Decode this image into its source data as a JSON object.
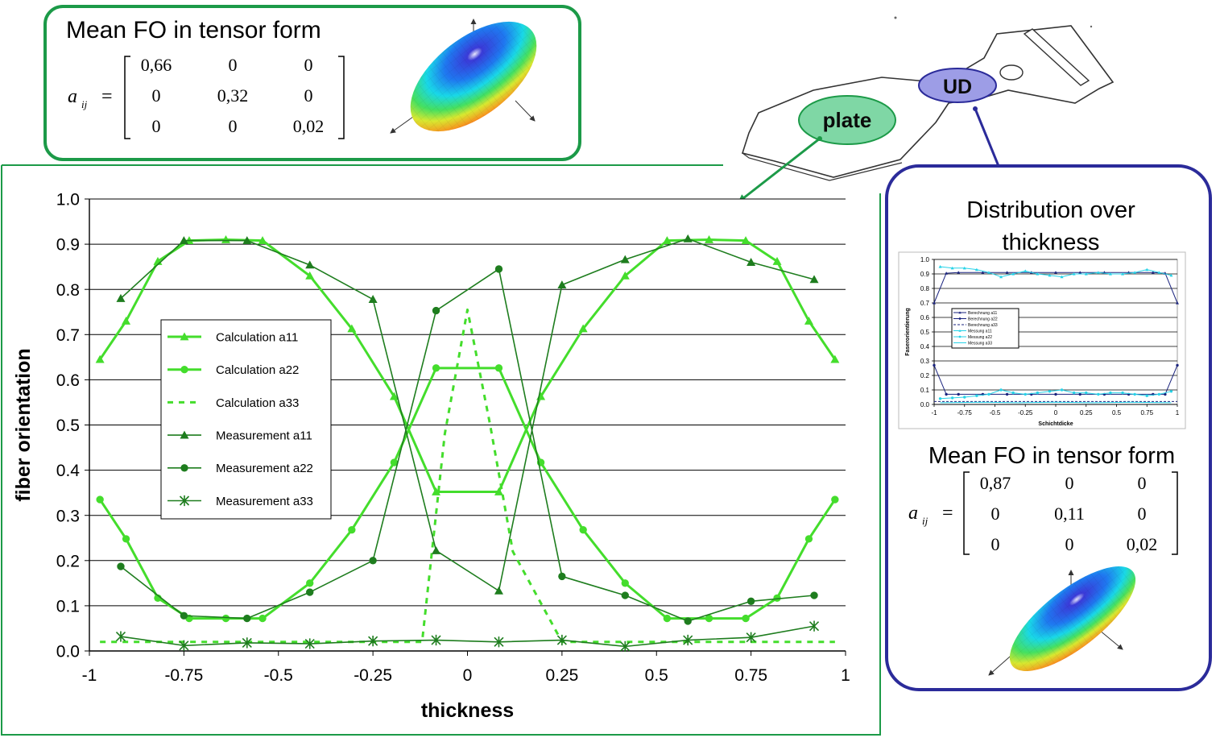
{
  "top_box": {
    "title": "Mean FO in tensor form",
    "symbol_a": "a",
    "symbol_sub": "ij",
    "equals": "=",
    "matrix": [
      [
        "0,66",
        "0",
        "0"
      ],
      [
        "0",
        "0,32",
        "0"
      ],
      [
        "0",
        "0",
        "0,02"
      ]
    ]
  },
  "part_labels": {
    "plate": "plate",
    "ud": "UD"
  },
  "right_box": {
    "title_line1": "Distribution over",
    "title_line2": "thickness",
    "tensor_title": "Mean FO in tensor form",
    "symbol_a": "a",
    "symbol_sub": "ij",
    "equals": "=",
    "matrix": [
      [
        "0,87",
        "0",
        "0"
      ],
      [
        "0",
        "0,11",
        "0"
      ],
      [
        "0",
        "0",
        "0,02"
      ]
    ]
  },
  "colors": {
    "calc": "#44dd2c",
    "meas": "#1e7d1e",
    "plate_fill": "#7fd7a5",
    "plate_stroke": "#1c9a48",
    "ud_fill": "#9d9de6",
    "ud_stroke": "#2b2b9a",
    "green_box": "#1c9a48",
    "blue_box": "#2b2b9a"
  },
  "chart_data": [
    {
      "type": "line",
      "xlabel": "thickness",
      "ylabel": "fiber  orientation",
      "xlim": [
        -1,
        1
      ],
      "ylim": [
        0,
        1
      ],
      "x_ticks": [
        "-1",
        "-0.75",
        "-0.5",
        "-0.25",
        "0",
        "0.25",
        "0.5",
        "0.75",
        "1"
      ],
      "x_tick_values": [
        -1,
        -0.75,
        -0.5,
        -0.25,
        0,
        0.25,
        0.5,
        0.75,
        1
      ],
      "y_ticks": [
        "0.0",
        "0.1",
        "0.2",
        "0.3",
        "0.4",
        "0.5",
        "0.6",
        "0.7",
        "0.8",
        "0.9",
        "1.0"
      ],
      "y_tick_values": [
        0,
        0.1,
        0.2,
        0.3,
        0.4,
        0.5,
        0.6,
        0.7,
        0.8,
        0.9,
        1.0
      ],
      "grid": "horizontal",
      "legend_position": "inside-left",
      "series": [
        {
          "name": "Calculation  a11",
          "style": "calc",
          "marker": "triangle",
          "dash": false,
          "x": [
            -0.972,
            -0.903,
            -0.819,
            -0.736,
            -0.639,
            -0.542,
            -0.417,
            -0.306,
            -0.194,
            -0.083,
            0.083,
            0.194,
            0.306,
            0.417,
            0.528,
            0.639,
            0.736,
            0.819,
            0.903,
            0.972
          ],
          "y": [
            0.645,
            0.73,
            0.862,
            0.908,
            0.91,
            0.908,
            0.83,
            0.713,
            0.563,
            0.352,
            0.352,
            0.563,
            0.713,
            0.83,
            0.908,
            0.91,
            0.908,
            0.862,
            0.73,
            0.645
          ]
        },
        {
          "name": "Calculation  a22",
          "style": "calc",
          "marker": "circle",
          "dash": false,
          "x": [
            -0.972,
            -0.903,
            -0.819,
            -0.736,
            -0.639,
            -0.542,
            -0.417,
            -0.306,
            -0.194,
            -0.083,
            0.083,
            0.194,
            0.306,
            0.417,
            0.528,
            0.639,
            0.736,
            0.819,
            0.903,
            0.972
          ],
          "y": [
            0.335,
            0.248,
            0.117,
            0.072,
            0.072,
            0.072,
            0.15,
            0.268,
            0.417,
            0.626,
            0.626,
            0.417,
            0.268,
            0.15,
            0.072,
            0.072,
            0.072,
            0.117,
            0.248,
            0.335
          ]
        },
        {
          "name": "Calculation  a33",
          "style": "calc",
          "marker": "none",
          "dash": true,
          "x": [
            -0.972,
            -0.75,
            -0.5,
            -0.25,
            -0.12,
            -0.06,
            0,
            0.06,
            0.12,
            0.25,
            0.5,
            0.75,
            0.972
          ],
          "y": [
            0.02,
            0.02,
            0.02,
            0.02,
            0.02,
            0.48,
            0.755,
            0.5,
            0.22,
            0.02,
            0.02,
            0.02,
            0.02
          ]
        },
        {
          "name": "Measurement  a11",
          "style": "meas",
          "marker": "triangle",
          "dash": false,
          "x": [
            -0.917,
            -0.75,
            -0.583,
            -0.417,
            -0.25,
            -0.083,
            0.083,
            0.25,
            0.417,
            0.583,
            0.75,
            0.917
          ],
          "y": [
            0.78,
            0.908,
            0.908,
            0.854,
            0.778,
            0.222,
            0.133,
            0.81,
            0.866,
            0.912,
            0.86,
            0.822
          ]
        },
        {
          "name": "Measurement  a22",
          "style": "meas",
          "marker": "circle",
          "dash": false,
          "x": [
            -0.917,
            -0.75,
            -0.583,
            -0.417,
            -0.25,
            -0.083,
            0.083,
            0.25,
            0.417,
            0.583,
            0.75,
            0.917
          ],
          "y": [
            0.187,
            0.078,
            0.072,
            0.13,
            0.2,
            0.753,
            0.845,
            0.165,
            0.123,
            0.066,
            0.11,
            0.123
          ]
        },
        {
          "name": "Measurement  a33",
          "style": "meas",
          "marker": "star",
          "dash": false,
          "x": [
            -0.917,
            -0.75,
            -0.583,
            -0.417,
            -0.25,
            -0.083,
            0.083,
            0.25,
            0.417,
            0.583,
            0.75,
            0.917
          ],
          "y": [
            0.032,
            0.012,
            0.018,
            0.016,
            0.022,
            0.024,
            0.02,
            0.024,
            0.01,
            0.024,
            0.03,
            0.055
          ]
        }
      ]
    },
    {
      "type": "line",
      "xlabel": "Schichtdicke",
      "ylabel": "Faserorientierung",
      "xlim": [
        -1,
        1
      ],
      "ylim": [
        0,
        1
      ],
      "x_ticks": [
        "-1",
        "-0.75",
        "-0.5",
        "-0.25",
        "0",
        "0.25",
        "0.5",
        "0.75",
        "1"
      ],
      "x_tick_values": [
        -1,
        -0.75,
        -0.5,
        -0.25,
        0,
        0.25,
        0.5,
        0.75,
        1
      ],
      "y_ticks": [
        "0.0",
        "0.1",
        "0.2",
        "0.3",
        "0.4",
        "0.5",
        "0.6",
        "0.7",
        "0.8",
        "0.9",
        "1.0"
      ],
      "y_tick_values": [
        0,
        0.1,
        0.2,
        0.3,
        0.4,
        0.5,
        0.6,
        0.7,
        0.8,
        0.9,
        1.0
      ],
      "grid": "horizontal",
      "series": [
        {
          "name": "Berechnung  a11",
          "style": "navy",
          "marker": "triangle",
          "dash": false,
          "x": [
            -1,
            -0.9,
            -0.8,
            -0.6,
            -0.4,
            -0.2,
            0,
            0.2,
            0.4,
            0.6,
            0.8,
            0.9,
            1
          ],
          "y": [
            0.7,
            0.905,
            0.91,
            0.91,
            0.91,
            0.91,
            0.91,
            0.91,
            0.91,
            0.91,
            0.91,
            0.905,
            0.7
          ]
        },
        {
          "name": "Berechnung  a22",
          "style": "navy",
          "marker": "circle",
          "dash": false,
          "x": [
            -1,
            -0.9,
            -0.8,
            -0.6,
            -0.4,
            -0.2,
            0,
            0.2,
            0.4,
            0.6,
            0.8,
            0.9,
            1
          ],
          "y": [
            0.27,
            0.07,
            0.07,
            0.07,
            0.07,
            0.07,
            0.07,
            0.07,
            0.07,
            0.07,
            0.07,
            0.07,
            0.27
          ]
        },
        {
          "name": "Berechnung  a33",
          "style": "navy",
          "marker": "none",
          "dash": true,
          "x": [
            -1,
            1
          ],
          "y": [
            0.02,
            0.02
          ]
        },
        {
          "name": "Messung  a11",
          "style": "cyan",
          "marker": "triangle",
          "dash": false,
          "x": [
            -0.95,
            -0.85,
            -0.75,
            -0.65,
            -0.55,
            -0.45,
            -0.35,
            -0.25,
            -0.15,
            -0.05,
            0.05,
            0.15,
            0.25,
            0.35,
            0.45,
            0.55,
            0.65,
            0.75,
            0.85,
            0.95
          ],
          "y": [
            0.95,
            0.94,
            0.94,
            0.93,
            0.91,
            0.88,
            0.9,
            0.92,
            0.9,
            0.89,
            0.88,
            0.9,
            0.9,
            0.91,
            0.9,
            0.9,
            0.91,
            0.93,
            0.91,
            0.89
          ]
        },
        {
          "name": "Messung  a22",
          "style": "cyan",
          "marker": "circle",
          "dash": false,
          "x": [
            -0.95,
            -0.85,
            -0.75,
            -0.65,
            -0.55,
            -0.45,
            -0.35,
            -0.25,
            -0.15,
            -0.05,
            0.05,
            0.15,
            0.25,
            0.35,
            0.45,
            0.55,
            0.65,
            0.75,
            0.85,
            0.95
          ],
          "y": [
            0.04,
            0.045,
            0.05,
            0.06,
            0.07,
            0.1,
            0.08,
            0.07,
            0.08,
            0.09,
            0.1,
            0.08,
            0.08,
            0.07,
            0.08,
            0.08,
            0.07,
            0.06,
            0.07,
            0.09
          ]
        },
        {
          "name": "Messung  a33",
          "style": "cyan",
          "marker": "none",
          "dash": false,
          "x": [
            -0.95,
            -0.6,
            -0.3,
            0,
            0.3,
            0.6,
            0.95
          ],
          "y": [
            0.012,
            0.015,
            0.012,
            0.015,
            0.012,
            0.015,
            0.012
          ]
        }
      ]
    }
  ]
}
